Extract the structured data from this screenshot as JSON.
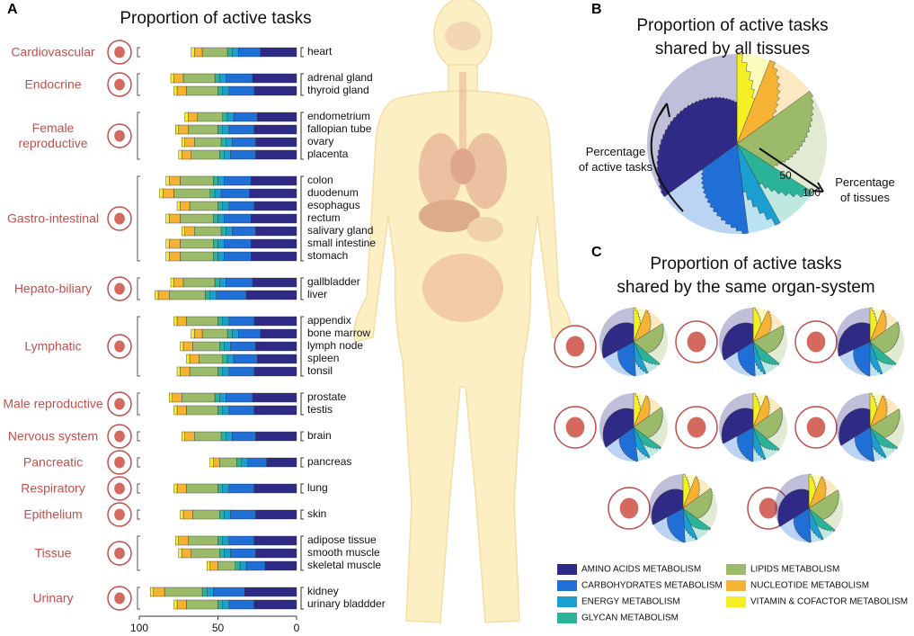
{
  "panel_labels": [
    "A",
    "B",
    "C"
  ],
  "chart_data": [
    {
      "type": "bar",
      "orientation": "horizontal",
      "stacked": true,
      "title": "Proportion of active tasks",
      "xlim": [
        100,
        0
      ],
      "xticks": [
        100,
        50,
        0
      ],
      "groups": [
        {
          "name": "Cardiovascular",
          "categories": [
            "heart"
          ]
        },
        {
          "name": "Endocrine",
          "categories": [
            "adrenal gland",
            "thyroid gland"
          ]
        },
        {
          "name": "Female reproductive",
          "categories": [
            "endometrium",
            "fallopian tube",
            "ovary",
            "placenta"
          ]
        },
        {
          "name": "Gastro-intestinal",
          "categories": [
            "colon",
            "duodenum",
            "esophagus",
            "rectum",
            "salivary gland",
            "small intestine",
            "stomach"
          ]
        },
        {
          "name": "Hepato-biliary",
          "categories": [
            "gallbladder",
            "liver"
          ]
        },
        {
          "name": "Lymphatic",
          "categories": [
            "appendix",
            "bone marrow",
            "lymph node",
            "spleen",
            "tonsil"
          ]
        },
        {
          "name": "Male reproductive",
          "categories": [
            "prostate",
            "testis"
          ]
        },
        {
          "name": "Nervous system",
          "categories": [
            "brain"
          ]
        },
        {
          "name": "Pancreatic",
          "categories": [
            "pancreas"
          ]
        },
        {
          "name": "Respiratory",
          "categories": [
            "lung"
          ]
        },
        {
          "name": "Epithelium",
          "categories": [
            "skin"
          ]
        },
        {
          "name": "Tissue",
          "categories": [
            "adipose tissue",
            "smooth muscle",
            "skeletal muscle"
          ]
        },
        {
          "name": "Urinary",
          "categories": [
            "kidney",
            "urinary bladdder"
          ]
        }
      ],
      "series": [
        {
          "name": "AMINO ACIDS METABOLISM",
          "color": "#2e2a86",
          "values": [
            [
              23
            ],
            [
              28,
              27
            ],
            [
              25,
              27,
              26,
              26
            ],
            [
              29,
              30,
              27,
              29,
              26,
              29,
              29
            ],
            [
              28,
              32
            ],
            [
              27,
              23,
              26,
              25,
              27
            ],
            [
              28,
              27
            ],
            [
              26
            ],
            [
              19
            ],
            [
              27
            ],
            [
              26
            ],
            [
              27,
              26,
              20
            ],
            [
              33,
              27
            ]
          ]
        },
        {
          "name": "CARBOHYDRATES METABOLISM",
          "color": "#1f6fd6",
          "values": [
            [
              14
            ],
            [
              17,
              16
            ],
            [
              15,
              16,
              15,
              16
            ],
            [
              17,
              18,
              16,
              17,
              15,
              17,
              17
            ],
            [
              17,
              19
            ],
            [
              16,
              14,
              16,
              15,
              16
            ],
            [
              17,
              16
            ],
            [
              15
            ],
            [
              12
            ],
            [
              16
            ],
            [
              16
            ],
            [
              16,
              16,
              12
            ],
            [
              20,
              16
            ]
          ]
        },
        {
          "name": "ENERGY METABOLISM",
          "color": "#1a9fd0",
          "values": [
            [
              4
            ],
            [
              4,
              4
            ],
            [
              4,
              4,
              4,
              4
            ],
            [
              4,
              4,
              4,
              4,
              4,
              4,
              4
            ],
            [
              4,
              4
            ],
            [
              4,
              4,
              4,
              4,
              4
            ],
            [
              4,
              4
            ],
            [
              4
            ],
            [
              4
            ],
            [
              4
            ],
            [
              4
            ],
            [
              4,
              4,
              4
            ],
            [
              4,
              4
            ]
          ]
        },
        {
          "name": "GLYCAN METABOLISM",
          "color": "#2bb39a",
          "values": [
            [
              3
            ],
            [
              3,
              3
            ],
            [
              3,
              3,
              3,
              3
            ],
            [
              3,
              3,
              3,
              3,
              3,
              3,
              3
            ],
            [
              3,
              3
            ],
            [
              3,
              3,
              3,
              3,
              3
            ],
            [
              3,
              3
            ],
            [
              3
            ],
            [
              3
            ],
            [
              3
            ],
            [
              3
            ],
            [
              3,
              3,
              3
            ],
            [
              3,
              3
            ]
          ]
        },
        {
          "name": "LIPIDS METABOLISM",
          "color": "#9bbb6b",
          "values": [
            [
              16
            ],
            [
              20,
              20
            ],
            [
              16,
              19,
              17,
              18
            ],
            [
              21,
              23,
              18,
              21,
              17,
              21,
              21
            ],
            [
              20,
              23
            ],
            [
              20,
              16,
              17,
              15,
              18
            ],
            [
              21,
              20
            ],
            [
              17
            ],
            [
              11
            ],
            [
              20
            ],
            [
              17
            ],
            [
              19,
              18,
              11
            ],
            [
              24,
              20
            ]
          ]
        },
        {
          "name": "NUCLEOTIDE METABOLISM",
          "color": "#f6b333",
          "values": [
            [
              5
            ],
            [
              6,
              6
            ],
            [
              6,
              6,
              6,
              6
            ],
            [
              7,
              7,
              6,
              7,
              6,
              7,
              7
            ],
            [
              6,
              7
            ],
            [
              6,
              5,
              6,
              6,
              6
            ],
            [
              6,
              6
            ],
            [
              6
            ],
            [
              4
            ],
            [
              6
            ],
            [
              6
            ],
            [
              6,
              6,
              5
            ],
            [
              7,
              6
            ]
          ]
        },
        {
          "name": "VITAMIN & COFACTOR METABOLISM",
          "color": "#f4f025",
          "values": [
            [
              2
            ],
            [
              2,
              2
            ],
            [
              2,
              2,
              2,
              2
            ],
            [
              2,
              2,
              2,
              2,
              2,
              2,
              2
            ],
            [
              2,
              2
            ],
            [
              2,
              2,
              2,
              2,
              2
            ],
            [
              2,
              2
            ],
            [
              2
            ],
            [
              2
            ],
            [
              2
            ],
            [
              2
            ],
            [
              2,
              2,
              2
            ],
            [
              2,
              2
            ]
          ]
        }
      ]
    },
    {
      "type": "pie",
      "title": [
        "Proportion of active tasks",
        "shared by all tissues"
      ],
      "y_label": [
        "Percentage",
        "of active tasks"
      ],
      "x_label": [
        "Percentage",
        "of tissues"
      ],
      "rticks": [
        50,
        100
      ],
      "values": [
        35,
        17,
        6,
        8,
        19,
        9,
        6
      ]
    },
    {
      "type": "pie",
      "title": [
        "Proportion of active tasks",
        "shared by the same organ-system"
      ],
      "pies": [
        {
          "values": [
            33,
            18,
            6,
            7,
            20,
            10,
            6
          ]
        },
        {
          "values": [
            34,
            17,
            5,
            8,
            19,
            10,
            7
          ]
        },
        {
          "values": [
            32,
            18,
            6,
            8,
            21,
            9,
            6
          ]
        },
        {
          "values": [
            35,
            17,
            6,
            7,
            20,
            9,
            6
          ]
        },
        {
          "values": [
            33,
            17,
            6,
            8,
            21,
            9,
            6
          ]
        },
        {
          "values": [
            34,
            18,
            6,
            7,
            19,
            10,
            6
          ]
        },
        {
          "values": [
            33,
            18,
            6,
            8,
            20,
            9,
            6
          ]
        },
        {
          "values": [
            34,
            17,
            6,
            7,
            20,
            10,
            6
          ]
        }
      ]
    }
  ]
}
